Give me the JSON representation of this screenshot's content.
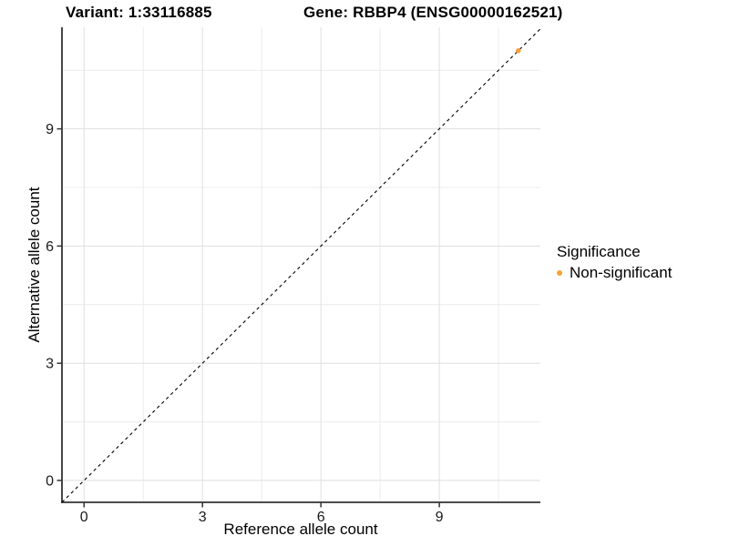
{
  "header": {
    "variant_title": "Variant: 1:33116885",
    "gene_title": "Gene: RBBP4 (ENSG00000162521)"
  },
  "axes": {
    "x_label": "Reference allele count",
    "y_label": "Alternative allele count"
  },
  "legend": {
    "title": "Significance",
    "items": [
      {
        "label": "Non-significant",
        "color": "#F8A13A",
        "shape": "circle"
      }
    ]
  },
  "chart_data": {
    "type": "scatter",
    "title_left": "Variant: 1:33116885",
    "title_right": "Gene: RBBP4 (ENSG00000162521)",
    "xlabel": "Reference allele count",
    "ylabel": "Alternative allele count",
    "xlim": [
      -0.56,
      11.56
    ],
    "ylim": [
      -0.56,
      11.6
    ],
    "major_ticks": [
      0,
      3,
      6,
      9
    ],
    "minor_ticks": [
      1.5,
      4.5,
      7.5,
      10.5
    ],
    "grid": true,
    "legend_position": "right",
    "series": [
      {
        "name": "Non-significant",
        "color": "#F8A13A",
        "points": [
          {
            "x": 11,
            "y": 11
          }
        ]
      }
    ],
    "reference_line": {
      "type": "identity",
      "equation": "y = x",
      "style": "dashed",
      "color": "#000000"
    }
  },
  "colors": {
    "background": "#FFFFFF",
    "grid_major": "#E2E2E2",
    "grid_minor": "#ECECEC",
    "axis_line": "#333333",
    "tick_text": "#1A1A1A",
    "point": "#F8A13A"
  }
}
